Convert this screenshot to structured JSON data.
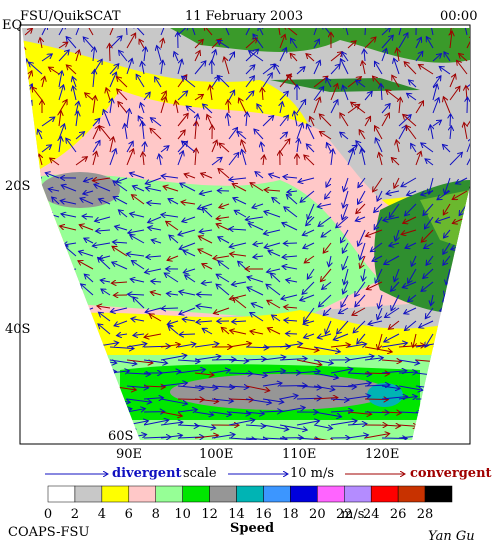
{
  "header": {
    "product": "FSU/QuikSCAT",
    "date": "11 February 2003",
    "time": "00:00"
  },
  "axes": {
    "lat_labels": [
      "EQ",
      "20S",
      "40S",
      "60S"
    ],
    "lon_labels": [
      "90E",
      "100E",
      "110E",
      "120E"
    ]
  },
  "legend": {
    "divergent": "divergent",
    "scale": "scale",
    "scale_value": "10 m/s",
    "convergent": "convergent"
  },
  "colorbar": {
    "ticks": [
      0,
      2,
      4,
      6,
      8,
      10,
      12,
      14,
      16,
      18,
      20,
      22,
      24,
      26,
      28
    ],
    "unit": "m/s",
    "title": "Speed",
    "colors": [
      "#ffffff",
      "#c8c8c8",
      "#ffff00",
      "#ffc8c8",
      "#96ff96",
      "#00e600",
      "#969696",
      "#00b4b4",
      "#3c96ff",
      "#0000dc",
      "#ff64ff",
      "#b48cff",
      "#ff0000",
      "#c83200",
      "#000000"
    ]
  },
  "footer": {
    "left": "COAPS-FSU",
    "right": "Yan Gu"
  }
}
